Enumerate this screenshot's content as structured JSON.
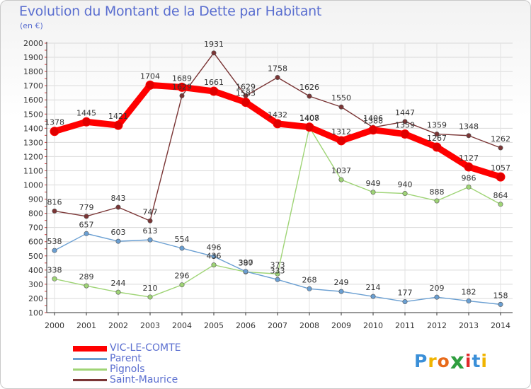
{
  "header": {
    "title": "Evolution du Montant de la Dette par Habitant",
    "unit": "(en €)"
  },
  "chart_data": {
    "type": "line",
    "title": "Evolution du Montant de la Dette par Habitant",
    "subtitle": "(en €)",
    "x": [
      "2000",
      "2001",
      "2002",
      "2003",
      "2004",
      "2005",
      "2006",
      "2007",
      "2008",
      "2009",
      "2010",
      "2011",
      "2012",
      "2013",
      "2014"
    ],
    "ylim": [
      100,
      2000
    ],
    "yticks": [
      100,
      200,
      300,
      400,
      500,
      600,
      700,
      800,
      900,
      1000,
      1100,
      1200,
      1300,
      1400,
      1500,
      1600,
      1700,
      1800,
      1900,
      2000
    ],
    "grid": true,
    "legend_position": "bottom-left",
    "series": [
      {
        "name": "VIC-LE-COMTE",
        "color": "#ff0000",
        "values": [
          1378,
          1445,
          1421,
          1704,
          1689,
          1661,
          1583,
          1432,
          1408,
          1312,
          1388,
          1359,
          1267,
          1127,
          1057
        ]
      },
      {
        "name": "Parent",
        "color": "#6a9fd2",
        "values": [
          538,
          657,
          603,
          613,
          554,
          496,
          390,
          333,
          268,
          249,
          214,
          177,
          209,
          182,
          158
        ]
      },
      {
        "name": "Pignols",
        "color": "#9fd476",
        "values": [
          338,
          289,
          244,
          210,
          296,
          436,
          387,
          373,
          1407,
          1037,
          949,
          940,
          888,
          986,
          864
        ]
      },
      {
        "name": "Saint-Maurice",
        "color": "#7a3535",
        "values": [
          816,
          779,
          843,
          747,
          1629,
          1931,
          1629,
          1758,
          1626,
          1550,
          1406,
          1447,
          1359,
          1348,
          1262
        ]
      }
    ]
  },
  "legend": [
    {
      "label": "VIC-LE-COMTE",
      "color": "#ff0000"
    },
    {
      "label": "Parent",
      "color": "#6a9fd2"
    },
    {
      "label": "Pignols",
      "color": "#9fd476"
    },
    {
      "label": "Saint-Maurice",
      "color": "#7a3535"
    }
  ],
  "logo": {
    "letters": [
      "P",
      "r",
      "o",
      "x",
      "i",
      "t",
      "i"
    ],
    "colors": [
      "#3a8fd8",
      "#f0b400",
      "#e86a1a",
      "#2f9e3f",
      "#e02a2a",
      "#3a8fd8",
      "#f0b400"
    ]
  }
}
